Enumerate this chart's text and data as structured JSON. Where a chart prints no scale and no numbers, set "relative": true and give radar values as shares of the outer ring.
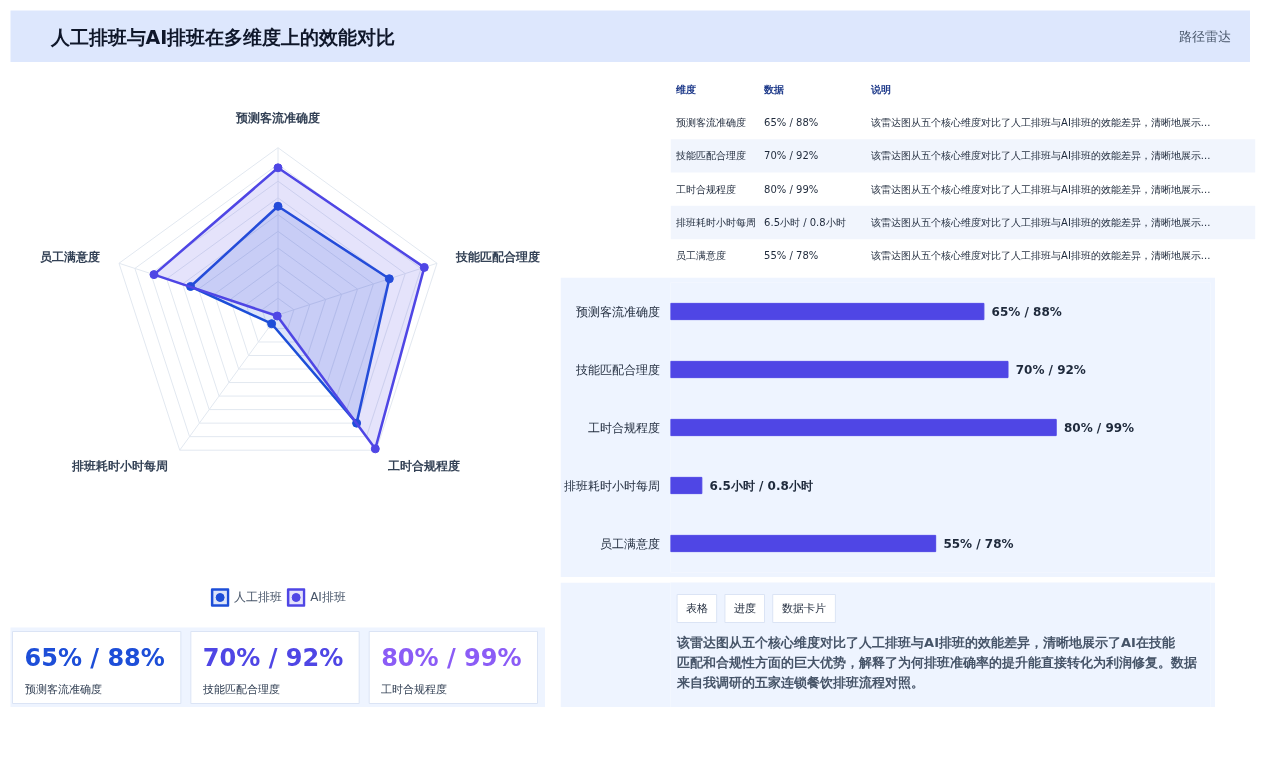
{
  "chart_data": [
    {
      "type": "other",
      "title": "人工排班与AI排班在多维度上的效能对比",
      "subtitle": "路径雷达"
    },
    {
      "type": "radar",
      "categories": [
        "预测客流准确度",
        "技能匹配合理度",
        "工时合规程度",
        "排班耗时小时每周",
        "员工满意度"
      ],
      "relative": true,
      "grid": true,
      "legend": "bottom",
      "marker": "circle",
      "series": [
        {
          "name": "人工排班",
          "color": "#1d4ed8",
          "values": [
            0.65,
            0.7,
            0.8,
            0.065,
            0.55
          ]
        },
        {
          "name": "AI排班",
          "color": "#4f46e5",
          "values": [
            0.88,
            0.92,
            0.99,
            0.008,
            0.78
          ]
        }
      ]
    },
    {
      "type": "other",
      "annotations": [
        "维度",
        "数据",
        "说明",
        "预测客流准确度",
        "65% / 88%",
        "该雷达图从五个核心维度对比了人工排班与AI排班的效能差异，清晰地展示...",
        "技能匹配合理度",
        "70% / 92%",
        "该雷达图从五个核心维度对比了人工排班与AI排班的效能差异，清晰地展示...",
        "工时合规程度",
        "80% / 99%",
        "该雷达图从五个核心维度对比了人工排班与AI排班的效能差异，清晰地展示...",
        "排班耗时小时每周",
        "6.5小时 / 0.8小时",
        "该雷达图从五个核心维度对比了人工排班与AI排班的效能差异，清晰地展示...",
        "员工满意度",
        "55% / 78%",
        "该雷达图从五个核心维度对比了人工排班与AI排班的效能差异，清晰地展示..."
      ]
    },
    {
      "type": "bar",
      "orientation": "horizontal",
      "categories": [
        "预测客流准确度",
        "技能匹配合理度",
        "工时合规程度",
        "排班耗时小时每周",
        "员工满意度"
      ],
      "values": [
        65,
        70,
        80,
        6.5,
        55
      ],
      "color": "#4f46e5",
      "value_labels": [
        "65% / 88%",
        "70% / 92%",
        "80% / 99%",
        "6.5小时 / 0.8小时",
        "55% / 78%"
      ]
    },
    {
      "type": "other",
      "annotations": [
        "65% / 88%",
        "预测客流准确度",
        "70% / 92%",
        "技能匹配合理度",
        "80% / 99%",
        "工时合规程度"
      ],
      "colors": [
        "#1d4ed8",
        "#4f46e5",
        "#8b5cf6"
      ]
    },
    {
      "type": "other",
      "annotations": [
        "表格",
        "进度",
        "数据卡片",
        "该雷达图从五个核心维度对比了人工排班与AI排班的效能差异，清晰地展示了AI在技能匹配和合规性方面的巨大优势，解释了为何排班准确率的提升能直接转化为利润修复。数据来自我调研的五家连锁餐饮排班流程对照。"
      ]
    }
  ]
}
